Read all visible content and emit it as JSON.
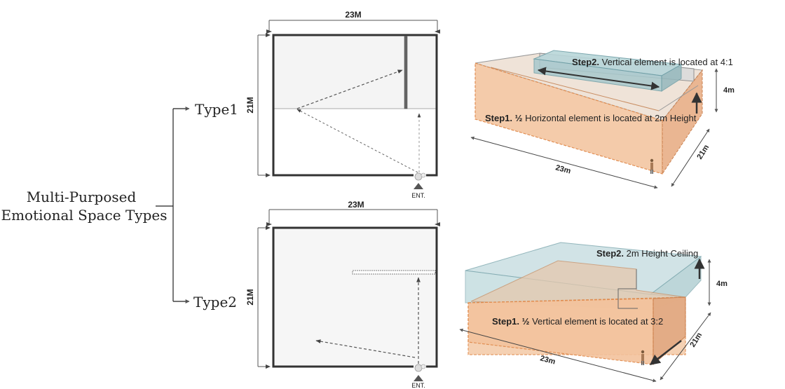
{
  "root": {
    "label_line1": "Multi-Purposed",
    "label_line2": "Emotional Space Types"
  },
  "types": [
    {
      "label": "Type1",
      "plan": {
        "width_label": "23M",
        "depth_label": "21M",
        "entrance_label": "ENT."
      },
      "iso": {
        "step2_bold": "Step2.",
        "step2_text": "Vertical element is located at 4:1",
        "step1_bold": "Step1. ½",
        "step1_text": "Horizontal element is located at 2m Height",
        "height_label": "4m",
        "width_label": "23m",
        "depth_label": "21m"
      }
    },
    {
      "label": "Type2",
      "plan": {
        "width_label": "23M",
        "depth_label": "21M",
        "entrance_label": "ENT."
      },
      "iso": {
        "step2_bold": "Step2.",
        "step2_text": "2m Height Ceiling",
        "step1_bold": "Step1. ½",
        "step1_text": "Vertical element is located at 3:2",
        "height_label": "4m",
        "width_label": "23m",
        "depth_label": "21m"
      }
    }
  ],
  "colors": {
    "wall_orange": "#f4c9a6",
    "wall_orange_stroke": "#e0894a",
    "glass_blue": "#b9d6d9",
    "glass_blue_stroke": "#6e9ea6",
    "plan_fill": "#f5f5f5",
    "plan_stroke": "#333333"
  }
}
